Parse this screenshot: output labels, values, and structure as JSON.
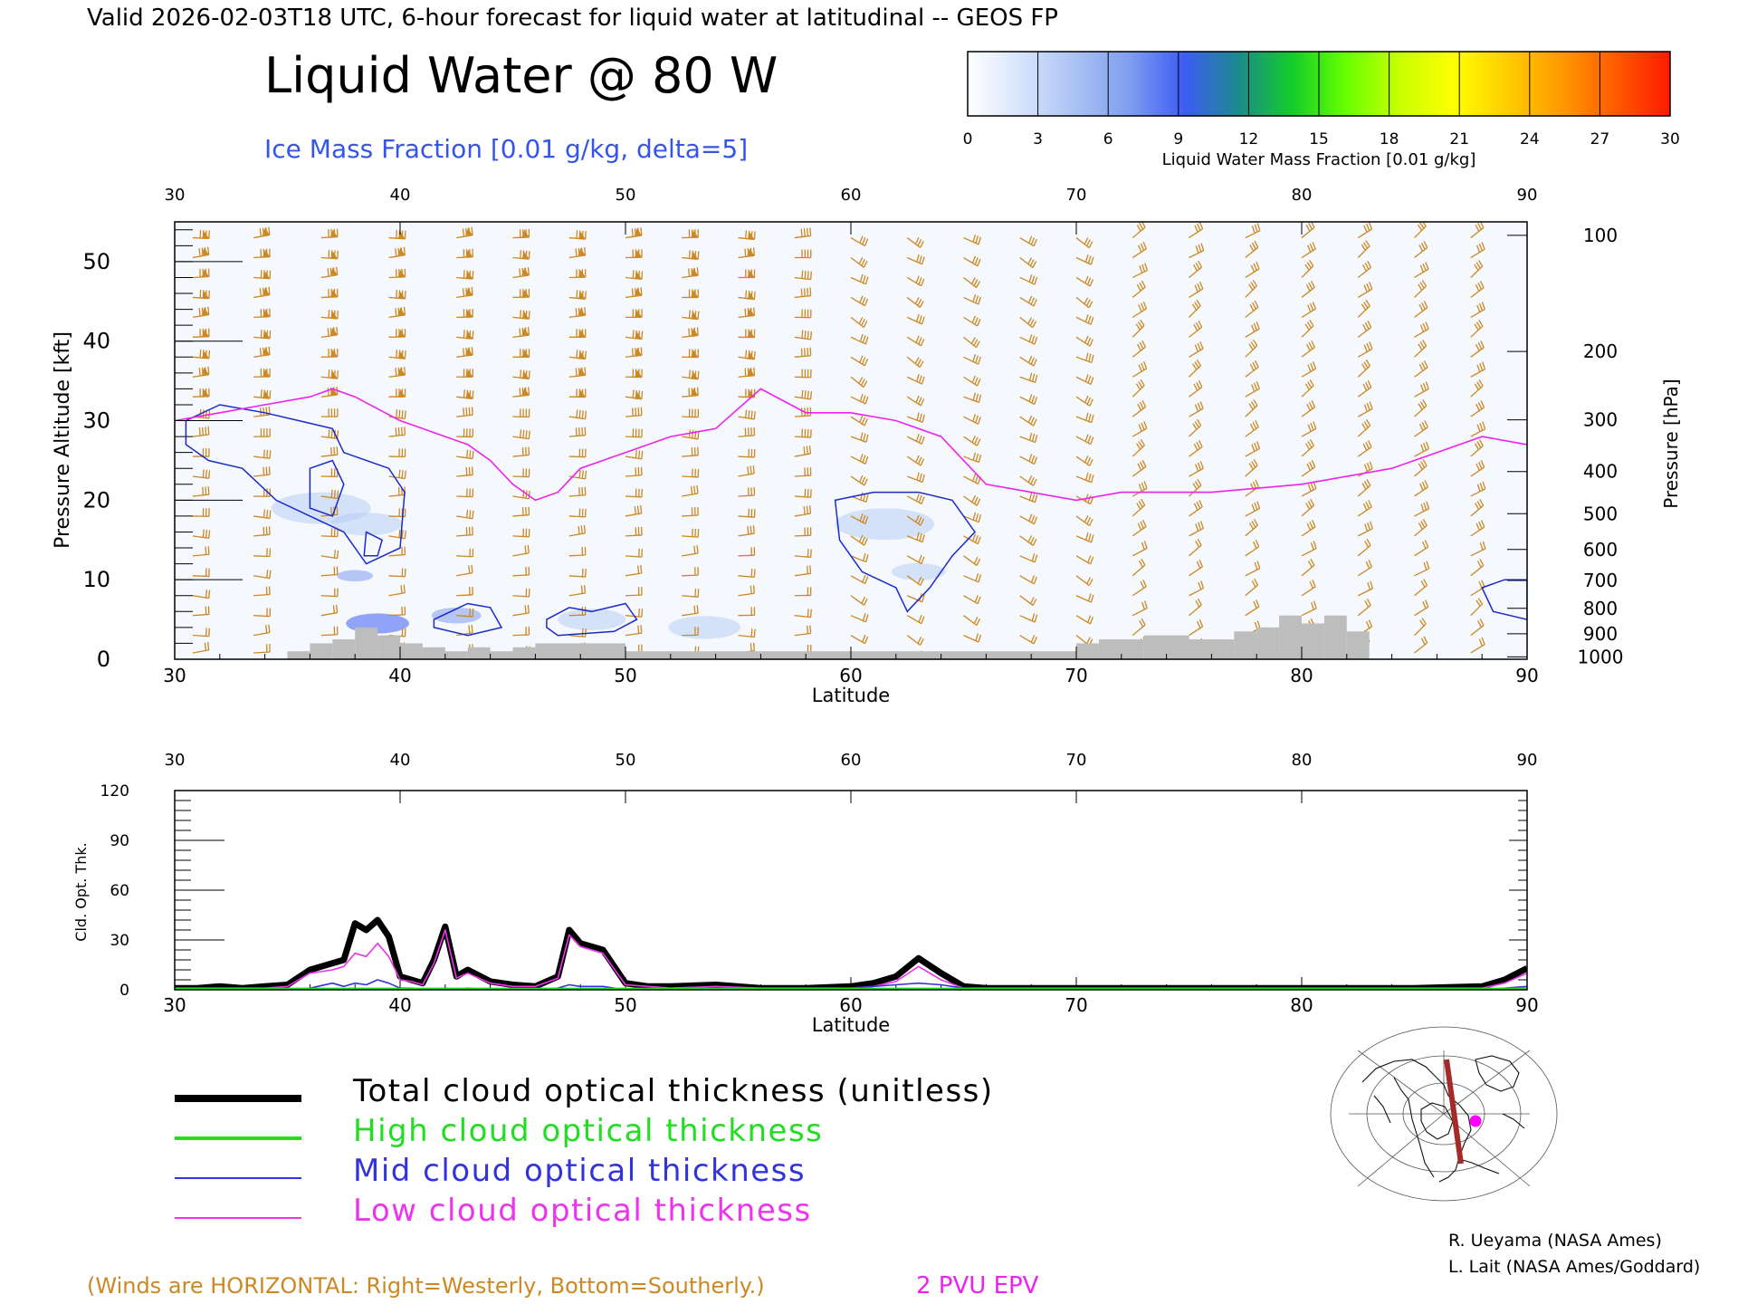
{
  "header": {
    "valid_line": "Valid 2026-02-03T18 UTC, 6-hour forecast for liquid water at latitudinal -- GEOS FP",
    "main_title": "Liquid Water @ 80 W",
    "subtitle": "Ice Mass Fraction [0.01 g/kg, delta=5]"
  },
  "colorbar": {
    "label": "Liquid Water Mass Fraction [0.01 g/kg]",
    "ticks": [
      "0",
      "3",
      "6",
      "9",
      "12",
      "15",
      "18",
      "21",
      "24",
      "27",
      "30"
    ],
    "colors": [
      "#ffffff",
      "#d6e4fb",
      "#a9c2f3",
      "#7f9df0",
      "#3d5cf5",
      "#1c8a8c",
      "#14cc2a",
      "#66ff00",
      "#c9ff00",
      "#ffff00",
      "#ffcc00",
      "#ff9900",
      "#ff5a00",
      "#ff1a00"
    ]
  },
  "footer": {
    "winds_note": "(Winds are HORIZONTAL: Right=Westerly, Bottom=Southerly.)",
    "epv_label": "2 PVU EPV",
    "credit_1": "R. Ueyama (NASA Ames)",
    "credit_2": "L. Lait (NASA Ames/Goddard)"
  },
  "legend": [
    {
      "label": "Total cloud optical thickness (unitless)",
      "color": "#000000"
    },
    {
      "label": "High cloud optical thickness",
      "color": "#22dd22"
    },
    {
      "label": "Mid cloud optical thickness",
      "color": "#3333dd"
    },
    {
      "label": "Low cloud optical thickness",
      "color": "#ee33ee"
    }
  ],
  "colors": {
    "wind_barb": "#cc8822",
    "epv_line": "#ee22ee",
    "ice_contour": "#1a2acc",
    "terrain": "#bdbdbd",
    "subtitle_blue": "#3355ee"
  },
  "chart_data": [
    {
      "type": "heatmap",
      "xlabel": "Latitude",
      "ylabel": "Pressure Altitude [kft]",
      "ylabel_right": "Pressure [hPa]",
      "xlim": [
        30,
        90
      ],
      "ylim": [
        0,
        55
      ],
      "x_ticks": [
        "30",
        "40",
        "50",
        "60",
        "70",
        "80",
        "90"
      ],
      "y_ticks": [
        "0",
        "10",
        "20",
        "30",
        "40",
        "50"
      ],
      "pressure_ticks": [
        {
          "label": "100",
          "kft": 53.3
        },
        {
          "label": "200",
          "kft": 38.7
        },
        {
          "label": "300",
          "kft": 30.1
        },
        {
          "label": "400",
          "kft": 23.6
        },
        {
          "label": "500",
          "kft": 18.3
        },
        {
          "label": "600",
          "kft": 13.8
        },
        {
          "label": "700",
          "kft": 9.9
        },
        {
          "label": "800",
          "kft": 6.4
        },
        {
          "label": "900",
          "kft": 3.2
        },
        {
          "label": "1000",
          "kft": 0.3
        }
      ],
      "epv_2pvu_kft": [
        {
          "lat": 30,
          "alt": 30
        },
        {
          "lat": 32,
          "alt": 31
        },
        {
          "lat": 34,
          "alt": 32
        },
        {
          "lat": 36,
          "alt": 33
        },
        {
          "lat": 37,
          "alt": 34
        },
        {
          "lat": 38,
          "alt": 33
        },
        {
          "lat": 39,
          "alt": 31.5
        },
        {
          "lat": 40,
          "alt": 30
        },
        {
          "lat": 41,
          "alt": 29
        },
        {
          "lat": 42,
          "alt": 28
        },
        {
          "lat": 43,
          "alt": 27
        },
        {
          "lat": 44,
          "alt": 25
        },
        {
          "lat": 45,
          "alt": 22
        },
        {
          "lat": 46,
          "alt": 20
        },
        {
          "lat": 47,
          "alt": 21
        },
        {
          "lat": 48,
          "alt": 24
        },
        {
          "lat": 50,
          "alt": 26
        },
        {
          "lat": 52,
          "alt": 28
        },
        {
          "lat": 54,
          "alt": 29
        },
        {
          "lat": 56,
          "alt": 34
        },
        {
          "lat": 58,
          "alt": 31
        },
        {
          "lat": 60,
          "alt": 31
        },
        {
          "lat": 62,
          "alt": 30
        },
        {
          "lat": 64,
          "alt": 28
        },
        {
          "lat": 66,
          "alt": 22
        },
        {
          "lat": 68,
          "alt": 21
        },
        {
          "lat": 70,
          "alt": 20
        },
        {
          "lat": 72,
          "alt": 21
        },
        {
          "lat": 76,
          "alt": 21
        },
        {
          "lat": 80,
          "alt": 22
        },
        {
          "lat": 84,
          "alt": 24
        },
        {
          "lat": 86,
          "alt": 26
        },
        {
          "lat": 88,
          "alt": 28
        },
        {
          "lat": 90,
          "alt": 27
        }
      ],
      "ice_contour_regions": [
        [
          {
            "lat": 30.5,
            "alt": 30
          },
          {
            "lat": 32,
            "alt": 32
          },
          {
            "lat": 34,
            "alt": 31
          },
          {
            "lat": 35.5,
            "alt": 30
          },
          {
            "lat": 37,
            "alt": 29
          },
          {
            "lat": 37.5,
            "alt": 26
          },
          {
            "lat": 39.5,
            "alt": 24
          },
          {
            "lat": 40.2,
            "alt": 21
          },
          {
            "lat": 40,
            "alt": 14
          },
          {
            "lat": 38.5,
            "alt": 12
          },
          {
            "lat": 37.5,
            "alt": 16
          },
          {
            "lat": 36,
            "alt": 18
          },
          {
            "lat": 34.5,
            "alt": 20
          },
          {
            "lat": 33,
            "alt": 24
          },
          {
            "lat": 31.5,
            "alt": 25
          },
          {
            "lat": 30.5,
            "alt": 27
          }
        ],
        [
          {
            "lat": 36,
            "alt": 24
          },
          {
            "lat": 37,
            "alt": 25
          },
          {
            "lat": 37.5,
            "alt": 22
          },
          {
            "lat": 37,
            "alt": 18
          },
          {
            "lat": 36,
            "alt": 19
          }
        ],
        [
          {
            "lat": 38.5,
            "alt": 16
          },
          {
            "lat": 39.2,
            "alt": 15
          },
          {
            "lat": 39,
            "alt": 13
          },
          {
            "lat": 38.4,
            "alt": 13
          }
        ],
        [
          {
            "lat": 41.5,
            "alt": 5
          },
          {
            "lat": 43,
            "alt": 7
          },
          {
            "lat": 44,
            "alt": 6.5
          },
          {
            "lat": 44.5,
            "alt": 4
          },
          {
            "lat": 43,
            "alt": 3
          },
          {
            "lat": 41.5,
            "alt": 4
          }
        ],
        [
          {
            "lat": 46.5,
            "alt": 5
          },
          {
            "lat": 47.5,
            "alt": 6.5
          },
          {
            "lat": 48.5,
            "alt": 6
          },
          {
            "lat": 50,
            "alt": 7
          },
          {
            "lat": 50.5,
            "alt": 5
          },
          {
            "lat": 49.5,
            "alt": 3.5
          },
          {
            "lat": 47,
            "alt": 3
          },
          {
            "lat": 46.5,
            "alt": 4
          }
        ],
        [
          {
            "lat": 59.3,
            "alt": 20
          },
          {
            "lat": 61,
            "alt": 21
          },
          {
            "lat": 63,
            "alt": 21
          },
          {
            "lat": 64.5,
            "alt": 20
          },
          {
            "lat": 65.5,
            "alt": 16
          },
          {
            "lat": 64.5,
            "alt": 13
          },
          {
            "lat": 63.5,
            "alt": 9
          },
          {
            "lat": 62.5,
            "alt": 6
          },
          {
            "lat": 62,
            "alt": 9
          },
          {
            "lat": 60.5,
            "alt": 11
          },
          {
            "lat": 59.5,
            "alt": 15
          }
        ],
        [
          {
            "lat": 88,
            "alt": 9
          },
          {
            "lat": 89,
            "alt": 10
          },
          {
            "lat": 90,
            "alt": 10
          },
          {
            "lat": 90,
            "alt": 5
          },
          {
            "lat": 88.5,
            "alt": 6
          }
        ]
      ],
      "ice_shading": [
        {
          "lat": 36.5,
          "alt": 19,
          "r": 2.2,
          "level": 0.25
        },
        {
          "lat": 38.5,
          "alt": 17,
          "r": 1.6,
          "level": 0.35
        },
        {
          "lat": 38,
          "alt": 10.5,
          "r": 0.8,
          "level": 0.55
        },
        {
          "lat": 39,
          "alt": 4.5,
          "r": 1.4,
          "level": 0.8
        },
        {
          "lat": 42.5,
          "alt": 5.5,
          "r": 1.1,
          "level": 0.6
        },
        {
          "lat": 48.5,
          "alt": 5,
          "r": 1.5,
          "level": 0.4
        },
        {
          "lat": 53.5,
          "alt": 4,
          "r": 1.6,
          "level": 0.25
        },
        {
          "lat": 61.5,
          "alt": 17,
          "r": 2.2,
          "level": 0.25
        },
        {
          "lat": 63,
          "alt": 11,
          "r": 1.2,
          "level": 0.3
        }
      ],
      "terrain_kft": [
        {
          "lat": 35,
          "h": 1
        },
        {
          "lat": 36,
          "h": 2
        },
        {
          "lat": 37,
          "h": 2.5
        },
        {
          "lat": 38,
          "h": 4
        },
        {
          "lat": 39,
          "h": 3
        },
        {
          "lat": 40,
          "h": 2
        },
        {
          "lat": 41,
          "h": 1.5
        },
        {
          "lat": 42,
          "h": 1
        },
        {
          "lat": 43,
          "h": 1.5
        },
        {
          "lat": 44,
          "h": 1
        },
        {
          "lat": 45,
          "h": 1.5
        },
        {
          "lat": 46,
          "h": 2
        },
        {
          "lat": 50,
          "h": 1
        },
        {
          "lat": 70,
          "h": 2
        },
        {
          "lat": 71,
          "h": 2.5
        },
        {
          "lat": 73,
          "h": 3
        },
        {
          "lat": 75,
          "h": 2.5
        },
        {
          "lat": 77,
          "h": 3.5
        },
        {
          "lat": 78,
          "h": 4
        },
        {
          "lat": 79,
          "h": 5.5
        },
        {
          "lat": 80,
          "h": 4.5
        },
        {
          "lat": 81,
          "h": 5.5
        },
        {
          "lat": 82,
          "h": 3.5
        },
        {
          "lat": 83,
          "h": 0
        }
      ],
      "wind_columns_lat": [
        30.8,
        33.5,
        36.5,
        39.5,
        42.5,
        45,
        47.5,
        50,
        52.5,
        55,
        57.5,
        60,
        62.5,
        65,
        67.5,
        70,
        72.5,
        75,
        77.5,
        80,
        82.5,
        85,
        87.5
      ],
      "wind_levels_kft": [
        0.8,
        3,
        5.5,
        8,
        10.5,
        13,
        15.5,
        18,
        20.5,
        23,
        25.5,
        28,
        30.5,
        33,
        35.5,
        38,
        40.5,
        43,
        45.5,
        48,
        50.5,
        53
      ]
    },
    {
      "type": "line",
      "xlabel": "Latitude",
      "ylabel": "Cld. Opt. Thk.",
      "xlim": [
        30,
        90
      ],
      "ylim": [
        0,
        120
      ],
      "x_ticks": [
        "30",
        "40",
        "50",
        "60",
        "70",
        "80",
        "90"
      ],
      "y_ticks": [
        "0",
        "30",
        "60",
        "90",
        "120"
      ],
      "x": [
        30,
        31,
        32,
        33,
        34,
        35,
        36,
        37,
        37.5,
        38,
        38.5,
        39,
        39.5,
        40,
        40.5,
        41,
        41.5,
        42,
        42.5,
        43,
        44,
        45,
        46,
        47,
        47.5,
        48,
        49,
        50,
        51,
        52,
        54,
        56,
        58,
        60,
        61,
        62,
        63,
        64,
        65,
        66,
        70,
        75,
        80,
        85,
        88,
        89,
        90
      ],
      "series": [
        {
          "name": "Total cloud optical thickness (unitless)",
          "values": [
            1,
            1,
            2,
            1,
            2,
            3,
            12,
            16,
            18,
            40,
            36,
            42,
            32,
            8,
            6,
            4,
            18,
            38,
            8,
            12,
            5,
            3,
            2,
            8,
            36,
            28,
            24,
            4,
            2,
            2,
            3,
            1,
            1,
            2,
            4,
            8,
            19,
            10,
            2,
            1,
            1,
            1,
            1,
            1,
            2,
            6,
            13
          ]
        },
        {
          "name": "High cloud optical thickness",
          "values": [
            0.5,
            0.5,
            0.5,
            0.5,
            0.5,
            0.5,
            0.5,
            0.5,
            0.5,
            0.5,
            0.5,
            0.5,
            0.5,
            0.5,
            0.5,
            0.5,
            0.5,
            0.5,
            0.5,
            0.5,
            0.5,
            0.5,
            0.5,
            0.5,
            0.5,
            0.5,
            0.5,
            0.5,
            0.5,
            0.5,
            0.5,
            0.5,
            0.5,
            0.5,
            0.5,
            0.5,
            0.5,
            0.5,
            0.5,
            0.5,
            0.5,
            0.5,
            0.5,
            0.5,
            0.5,
            0.5,
            0.5
          ]
        },
        {
          "name": "Mid cloud optical thickness",
          "values": [
            0,
            0,
            0,
            0,
            0,
            0,
            1,
            4,
            2,
            4,
            3,
            6,
            4,
            1,
            1,
            0,
            0,
            1,
            0,
            1,
            0,
            0,
            0,
            1,
            3,
            2,
            2,
            0,
            0,
            0,
            0,
            0,
            0,
            1,
            2,
            3,
            4,
            3,
            1,
            0,
            0,
            0,
            0,
            0,
            0,
            1,
            2
          ]
        },
        {
          "name": "Low cloud optical thickness",
          "values": [
            1,
            1,
            1,
            1,
            1,
            2,
            10,
            12,
            14,
            22,
            20,
            28,
            20,
            6,
            5,
            3,
            16,
            36,
            7,
            10,
            4,
            2,
            2,
            7,
            33,
            26,
            22,
            3,
            2,
            1,
            2,
            1,
            1,
            1,
            2,
            5,
            14,
            6,
            1,
            1,
            1,
            1,
            1,
            1,
            1,
            4,
            10
          ]
        }
      ]
    }
  ]
}
